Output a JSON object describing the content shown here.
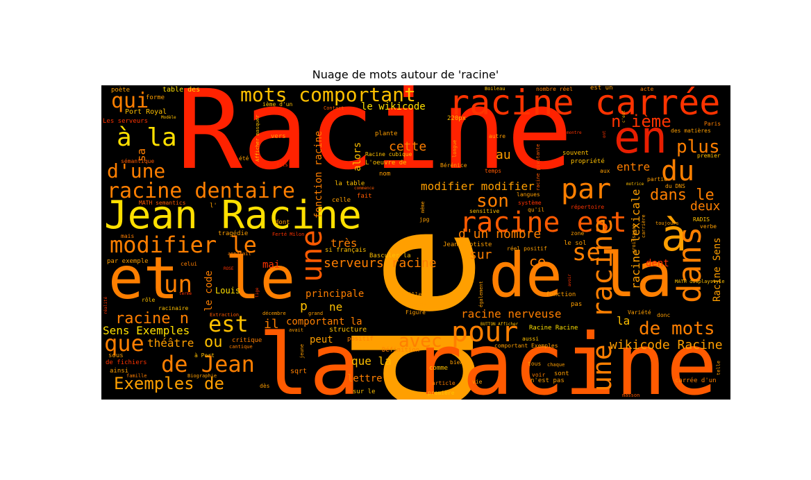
{
  "title": "Nuage de mots autour de 'racine'",
  "words": {
    "w_racine_big": "Racine",
    "w_de_big": "de",
    "w_la_racine": "la racine",
    "w_jean_racine": "Jean Racine",
    "w_et": "et",
    "w_le": "le",
    "w_de_la": "de la",
    "w_racine_carree": "racine carrée",
    "w_en": "en",
    "w_par": "par",
    "w_pour": "pour",
    "w_racine_est": "racine est",
    "w_racine_dentaire": "racine dentaire",
    "w_modifier_le": "modifier le",
    "w_mots_comportant": "mots comportant",
    "w_a_la": "à la",
    "w_a": "à",
    "w_du": "du",
    "w_dans": "dans",
    "w_une_big": "une",
    "w_racine_vert": "racine",
    "w_une_vert2": "une",
    "w_se": "se",
    "w_un": "un",
    "w_qui": "qui",
    "w_d_une": "d'une",
    "w_est": "est",
    "w_que": "que",
    "w_de_jean": "de Jean",
    "w_de_mots": "de mots",
    "w_plus": "plus",
    "w_n_ieme": "n ième",
    "w_son": "son",
    "w_avec": "avec",
    "w_exemples_de": "Exemples de",
    "w_racine_n": "racine n",
    "w_sens_exemples": "Sens Exemples",
    "w_ou": "ou",
    "w_theatre": "théâtre",
    "w_serveurs_racine": "serveurs racine",
    "w_dans_le": "dans le",
    "w_wikicode_racine": "wikicode Racine",
    "w_modifier_modifier": "modifier modifier",
    "w_racine_nerveuse": "racine nerveuse",
    "w_d_un_nombre": "d'un nombre",
    "w_cette": "cette",
    "w_au": "au",
    "w_entre": "entre",
    "w_deux": "deux",
    "w_dent": "dent",
    "w_ce": "ce",
    "w_sur": "sur",
    "w_tres": "très",
    "w_il": "il",
    "w_mai": "mai",
    "w_p": "p",
    "w_ne": "ne",
    "w_peut": "peut",
    "w_principale": "principale",
    "w_comportant_la": "comportant la",
    "w_que_la": "que la",
    "w_lettre": "lettre",
    "w_la": "la",
    "w_le_wikicode": "le wikicode",
    "w_sa": "sa",
    "w_le_code": "le code",
    "w_louis": "Louis",
    "w_fonction_racine": "fonction racine",
    "w_racine_lexicale": "racine lexicale",
    "w_racine_sens": "Racine Sens",
    "w_alors": "alors",
    "w_table_des": "table des",
    "w_poete": "poète",
    "w_forme": "forme",
    "w_port_royal": "Port Royal",
    "w_les_serveurs": "Les serveurs",
    "w_semantique": "sémantique",
    "w_math_semantics": "MATH semantics",
    "w_par_exemple": "par exemple",
    "w_mais": "mais",
    "w_celui": "celui",
    "w_role": "rôle",
    "w_racinaire": "racinaire",
    "w_critique": "critique",
    "w_structure": "structure",
    "w_positif": "positif",
    "w_sous": "sous",
    "w_a_port": "à Port",
    "w_de_fichiers": "de fichiers",
    "w_ainsi": "ainsi",
    "w_famille": "famille",
    "w_biographie": "Biographie",
    "w_des": "dès",
    "w_sqrt": "sqrt",
    "w_sur_le": "sur le",
    "w_premiere": "première",
    "w_article": "article",
    "w_comme": "comme",
    "w_bien": "bien",
    "w_vie": "vie",
    "w_voir": "voir",
    "w_sont": "sont",
    "w_n_est_pas": "n'est pas",
    "w_carree_d_un": "carrée d'un",
    "w_masson": "masson",
    "w_tous": "tous",
    "w_chaque": "chaque",
    "w_aussi": "aussi",
    "w_comportant_exemples": "comportant Exemples",
    "w_racine_racine": "Racine Racine",
    "w_button_afficher": "BUTTON Afficher",
    "w_figure": "Figure",
    "w_piece": "pièce",
    "w_corneille": "Corneille",
    "w_fonction": "fonction",
    "w_pas": "pas",
    "w_variete": "Variété",
    "w_donc": "donc",
    "w_math_displaystyle": "MATH displaystyle",
    "w_zone": "zone",
    "w_le_sol": "le sol",
    "w_reel_positif": "réel positif",
    "w_jean_baptiste": "Jean Baptiste",
    "w_si_francais": "si français",
    "w_basculer_la": "Basculer la",
    "w_tragedie": "tragédie",
    "w_dont": "dont",
    "w_l_apos": "l'",
    "w_celle": "celle",
    "w_fait": "fait",
    "w_la_table": "la table",
    "w_nom": "nom",
    "w_l_oeuvre_de": "L'oeuvre de",
    "w_racine_cubique": "Racine cubique",
    "w_definition": "Définition",
    "w_plante": "plante",
    "w_vers": "vers",
    "w_220px": "220px",
    "w_contact": "Contact",
    "w_ieme_d_un": "ième d'un",
    "w_ete": "été",
    "w_langues": "langues",
    "w_systeme": "système",
    "w_sensitive": "sensitive",
    "w_jpg": "jpg",
    "w_berenice": "Bérénice",
    "w_temps": "temps",
    "w_autre": "autre",
    "w_nombre_reel": "nombre réel",
    "w_est_un": "est un",
    "w_acte": "acte",
    "w_paris": "Paris",
    "w_des_matieres": "des matières",
    "w_premier": "premier",
    "w_souvent": "souvent",
    "w_propriete": "propriété",
    "w_aux": "aux",
    "w_partie": "partie",
    "w_du_dns": "du DNS",
    "w_toujours": "toujours",
    "w_repertoire": "répertoire",
    "w_radis": "RADIS",
    "w_verbe": "verbe",
    "w_croissance": "croissance",
    "w_carriere": "carrière",
    "w_montre": "montre",
    "w_boileau": "Boileau",
    "w_modele": "Modèle",
    "w_afficher_masquer": "Afficher masquer",
    "w_fils": "fils",
    "w_apparait": "apparaît",
    "w_rose": "ROSE",
    "w_ferte_milon": "Ferté Milon",
    "w_terme": "terme",
    "w_extraction": "Extraction",
    "w_cantique": "cantique",
    "w_decembre": "décembre",
    "w_grand": "grand",
    "w_avait": "avait",
    "w_jeune": "jeune",
    "w_etudes": "études",
    "w_egalement": "également",
    "w_meme": "même",
    "w_longue": "longue",
    "w_racine_pivotante": "racine pivotante",
    "w_motrice": "motrice",
    "w_telle": "telle",
    "w_commence": "commence",
    "w_qu_il": "qu'il",
    "w_avoir": "avoir",
    "w_tige": "tige",
    "w_realite": "réalité",
    "w_ont": "ont",
    "w_c_est": "c'est"
  },
  "colors": {
    "background": "#000000",
    "red": "#ff3300",
    "orange_red": "#ff5a00",
    "orange": "#ff7f00",
    "amber": "#ff9f00",
    "gold": "#ffc000",
    "yellow": "#ffe000"
  }
}
